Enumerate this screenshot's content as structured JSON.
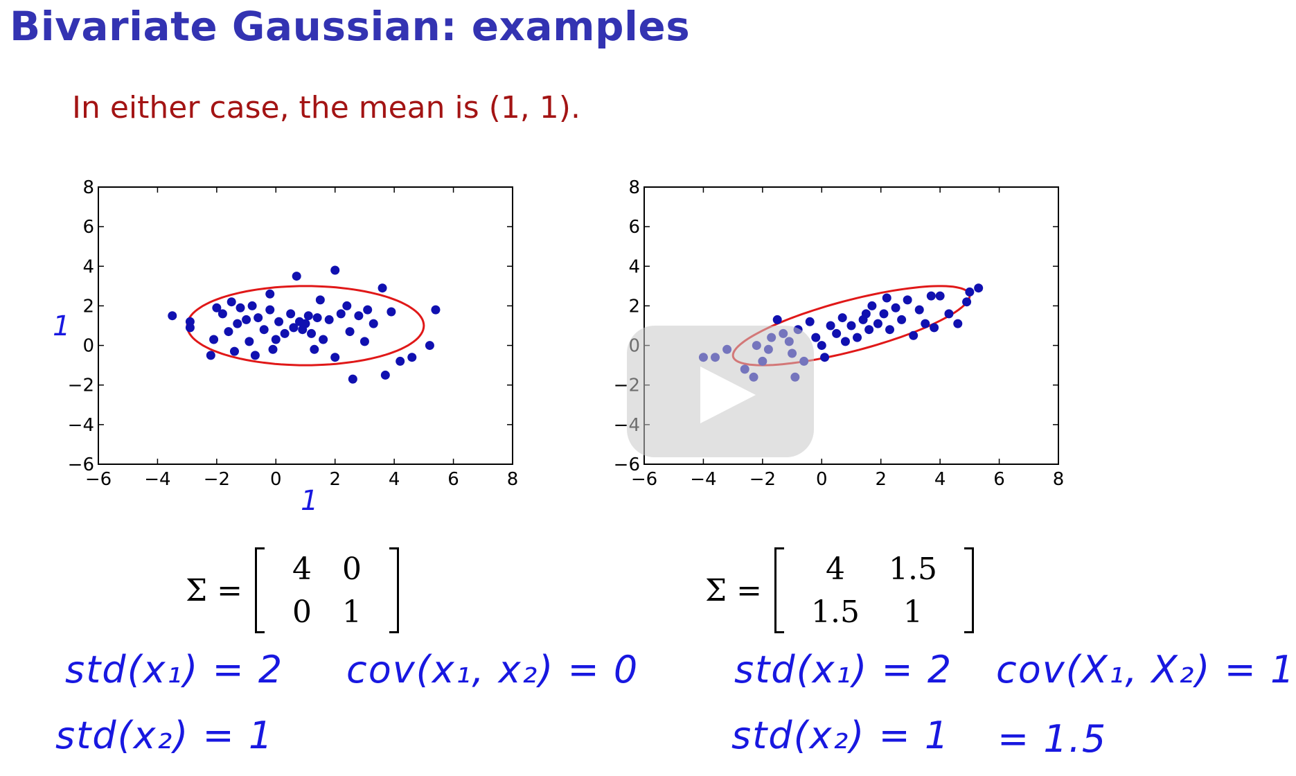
{
  "slide": {
    "title": "Bivariate Gaussian: examples",
    "subtitle": "In either case, the mean is (1, 1)."
  },
  "colors": {
    "title": "#3333b2",
    "subtitle": "#a31414",
    "points": "#1010b0",
    "ellipse": "#e01818",
    "handwriting": "#1818e0"
  },
  "chart_data": [
    {
      "type": "scatter",
      "xlim": [
        -6,
        8
      ],
      "ylim": [
        -6,
        8
      ],
      "xticks": [
        "−6",
        "−4",
        "−2",
        "0",
        "2",
        "4",
        "6",
        "8"
      ],
      "yticks": [
        "8",
        "6",
        "4",
        "2",
        "0",
        "−2",
        "−4",
        "−6"
      ],
      "mean": [
        1,
        1
      ],
      "covariance": [
        [
          4,
          0
        ],
        [
          0,
          1
        ]
      ],
      "ellipse_scale": 2,
      "points": [
        [
          -3.5,
          1.5
        ],
        [
          -2.9,
          0.9
        ],
        [
          -2.9,
          1.2
        ],
        [
          -2.2,
          -0.5
        ],
        [
          -2.1,
          0.3
        ],
        [
          -2.0,
          1.9
        ],
        [
          -1.8,
          1.6
        ],
        [
          -1.6,
          0.7
        ],
        [
          -1.5,
          2.2
        ],
        [
          -1.3,
          1.1
        ],
        [
          -1.2,
          1.9
        ],
        [
          -1.0,
          1.3
        ],
        [
          -0.9,
          0.2
        ],
        [
          -0.8,
          2.0
        ],
        [
          -0.7,
          -0.5
        ],
        [
          -0.6,
          1.4
        ],
        [
          -0.4,
          0.8
        ],
        [
          -0.2,
          1.8
        ],
        [
          -0.1,
          -0.2
        ],
        [
          0.1,
          1.2
        ],
        [
          0.3,
          0.6
        ],
        [
          0.5,
          1.6
        ],
        [
          0.6,
          0.9
        ],
        [
          0.7,
          3.5
        ],
        [
          0.8,
          1.2
        ],
        [
          0.9,
          0.8
        ],
        [
          1.0,
          1.1
        ],
        [
          1.1,
          1.5
        ],
        [
          1.2,
          0.6
        ],
        [
          1.3,
          -0.2
        ],
        [
          1.4,
          1.4
        ],
        [
          1.6,
          0.3
        ],
        [
          1.8,
          1.3
        ],
        [
          2.0,
          3.8
        ],
        [
          2.0,
          -0.6
        ],
        [
          2.2,
          1.6
        ],
        [
          2.5,
          0.7
        ],
        [
          2.6,
          -1.7
        ],
        [
          2.8,
          1.5
        ],
        [
          3.0,
          0.2
        ],
        [
          3.3,
          1.1
        ],
        [
          3.6,
          2.9
        ],
        [
          3.7,
          -1.5
        ],
        [
          3.9,
          1.7
        ],
        [
          4.2,
          -0.8
        ],
        [
          4.6,
          -0.6
        ],
        [
          5.2,
          0.0
        ],
        [
          5.4,
          1.8
        ],
        [
          -0.2,
          2.6
        ],
        [
          1.5,
          2.3
        ],
        [
          2.4,
          2.0
        ],
        [
          0.0,
          0.3
        ],
        [
          -1.4,
          -0.3
        ],
        [
          3.1,
          1.8
        ]
      ]
    },
    {
      "type": "scatter",
      "xlim": [
        -6,
        8
      ],
      "ylim": [
        -6,
        8
      ],
      "xticks": [
        "−6",
        "−4",
        "−2",
        "0",
        "2",
        "4",
        "6",
        "8"
      ],
      "yticks": [
        "8",
        "6",
        "4",
        "2",
        "0",
        "−2",
        "−4",
        "−6"
      ],
      "mean": [
        1,
        1
      ],
      "covariance": [
        [
          4,
          1.5
        ],
        [
          1.5,
          1
        ]
      ],
      "ellipse_scale": 2,
      "points": [
        [
          -4.0,
          -0.6
        ],
        [
          -3.6,
          -0.6
        ],
        [
          -3.2,
          -0.2
        ],
        [
          -2.6,
          -1.2
        ],
        [
          -2.3,
          -1.6
        ],
        [
          -2.2,
          0.0
        ],
        [
          -2.0,
          -0.8
        ],
        [
          -1.7,
          0.4
        ],
        [
          -1.5,
          1.3
        ],
        [
          -1.3,
          0.6
        ],
        [
          -1.1,
          0.2
        ],
        [
          -1.0,
          -0.4
        ],
        [
          -0.9,
          -1.6
        ],
        [
          -0.8,
          0.8
        ],
        [
          -0.6,
          -0.8
        ],
        [
          -0.4,
          1.2
        ],
        [
          -0.2,
          0.4
        ],
        [
          0.1,
          -0.6
        ],
        [
          0.3,
          1.0
        ],
        [
          0.5,
          0.6
        ],
        [
          0.7,
          1.4
        ],
        [
          0.8,
          0.2
        ],
        [
          1.0,
          1.0
        ],
        [
          1.2,
          0.4
        ],
        [
          1.4,
          1.3
        ],
        [
          1.6,
          0.8
        ],
        [
          1.7,
          2.0
        ],
        [
          1.9,
          1.1
        ],
        [
          2.1,
          1.6
        ],
        [
          2.3,
          0.8
        ],
        [
          2.5,
          1.9
        ],
        [
          2.7,
          1.3
        ],
        [
          2.9,
          2.3
        ],
        [
          3.1,
          0.5
        ],
        [
          3.3,
          1.8
        ],
        [
          3.5,
          1.1
        ],
        [
          3.8,
          0.9
        ],
        [
          4.0,
          2.5
        ],
        [
          4.3,
          1.6
        ],
        [
          4.6,
          1.1
        ],
        [
          4.9,
          2.2
        ],
        [
          5.0,
          2.7
        ],
        [
          5.3,
          2.9
        ],
        [
          2.2,
          2.4
        ],
        [
          0.0,
          0.0
        ],
        [
          1.5,
          1.6
        ],
        [
          -1.8,
          -0.2
        ],
        [
          3.7,
          2.5
        ]
      ]
    }
  ],
  "matrices": [
    {
      "label": "Σ =",
      "rows": [
        [
          "4",
          "0"
        ],
        [
          "0",
          "1"
        ]
      ]
    },
    {
      "label": "Σ =",
      "rows": [
        [
          "4",
          "1.5"
        ],
        [
          "1.5",
          "1"
        ]
      ]
    }
  ],
  "handwriting": {
    "left_std_x1": "std(x₁) = 2",
    "left_std_x2": "std(x₂) = 1",
    "left_cov": "cov(x₁, x₂) = 0",
    "right_std_x1": "std(x₁) = 2",
    "right_std_x2": "std(x₂) = 1",
    "right_cov": "cov(X₁, X₂) = 1.5",
    "right_cov_2": "= 1.5",
    "left_one_y": "1",
    "left_one_x": "1"
  }
}
